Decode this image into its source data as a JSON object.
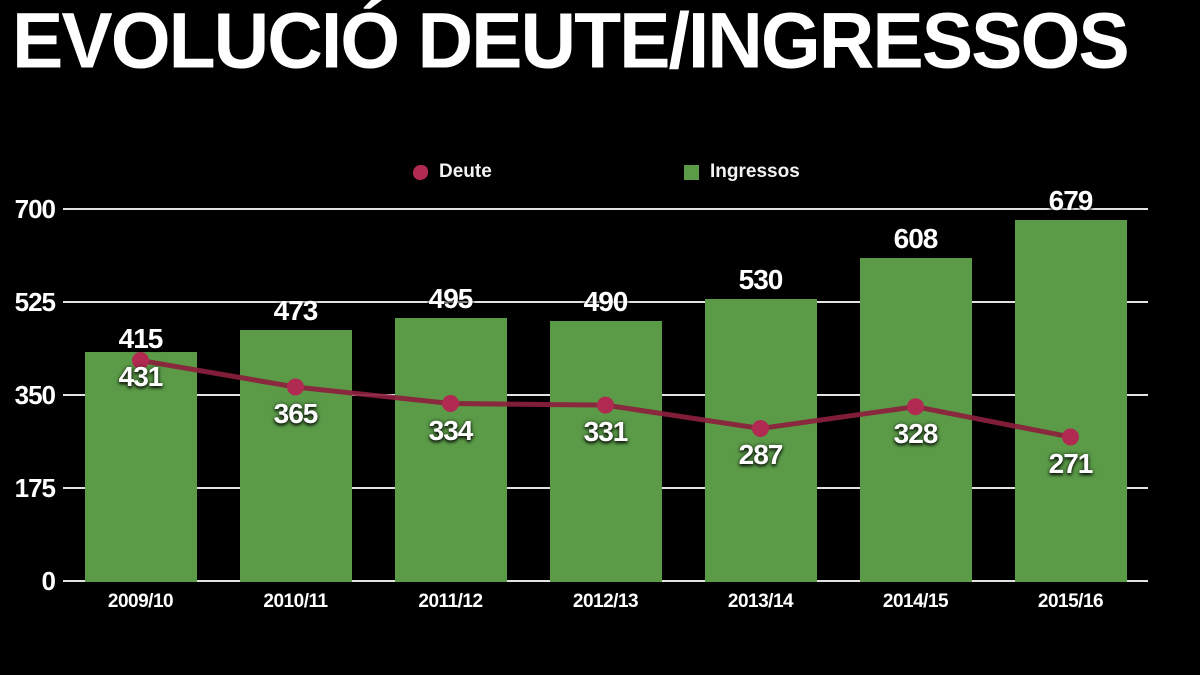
{
  "title": "EVOLUCIÓ DEUTE/INGRESSOS",
  "colors": {
    "background": "#000000",
    "bar_green": "#5b9b48",
    "line_dark_red": "#8c1f3d",
    "marker_crimson": "#b02a52",
    "grid": "#e2e2e2",
    "text": "#ffffff"
  },
  "chart_data": {
    "type": "bar",
    "subtype": "bar-with-line-overlay",
    "title": "EVOLUCIÓ DEUTE/INGRESSOS",
    "categories": [
      "2009/10",
      "2010/11",
      "2011/12",
      "2012/13",
      "2013/14",
      "2014/15",
      "2015/16"
    ],
    "series": [
      {
        "name": "Deute",
        "type": "line",
        "color": "#b02a52",
        "line_color": "#8c1f3d",
        "values": [
          415,
          365,
          334,
          331,
          287,
          328,
          271
        ],
        "label_placement": [
          "above",
          "below",
          "below",
          "below",
          "below",
          "below",
          "below"
        ]
      },
      {
        "name": "Ingressos",
        "type": "bar",
        "color": "#5b9b48",
        "values": [
          431,
          473,
          495,
          490,
          530,
          608,
          679
        ],
        "label_placement": [
          "inside",
          "above",
          "above",
          "above",
          "above",
          "above",
          "above"
        ]
      }
    ],
    "xlabel": "",
    "ylabel": "",
    "ylim": [
      0,
      700
    ],
    "yticks": [
      0,
      175,
      350,
      525,
      700
    ],
    "grid": "horizontal",
    "legend_position": "top-center"
  }
}
